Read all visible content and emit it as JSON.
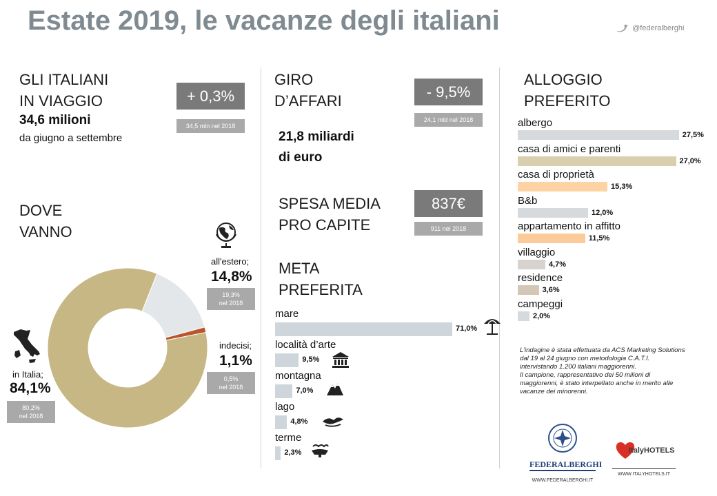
{
  "header": {
    "title": "Estate 2019, le vacanze degli italiani",
    "social_handle": "@federalberghi"
  },
  "travelers": {
    "heading_line1": "GLI ITALIANI",
    "heading_line2": "IN VIAGGIO",
    "amount": "34,6 milioni",
    "period": "da giugno a settembre",
    "change": "+ 0,3%",
    "previous": "34,5 mln nel 2018"
  },
  "turnover": {
    "heading_line1": "GIRO",
    "heading_line2": "D’AFFARI",
    "change": "- 9,5%",
    "previous": "24,1 mld nel 2018",
    "amount_line1": "21,8 miliardi",
    "amount_line2": "di euro"
  },
  "spending": {
    "heading_line1": "SPESA MEDIA",
    "heading_line2": "PRO CAPITE",
    "value": "837€",
    "previous": "911 nel 2018"
  },
  "destination": {
    "heading_line1": "DOVE",
    "heading_line2": "VANNO"
  },
  "meta_section": {
    "heading_line1": "META",
    "heading_line2": "PREFERITA"
  },
  "lodging_section": {
    "heading_line1": "ALLOGGIO",
    "heading_line2": "PREFERITO"
  },
  "chart_data": [
    {
      "type": "pie",
      "variant": "donut",
      "categories": [
        "in Italia",
        "all'estero",
        "indecisi"
      ],
      "values": [
        84.1,
        14.8,
        1.1
      ],
      "labels": [
        "in Italia;",
        "all'estero;",
        "indecisi;"
      ],
      "value_labels": [
        "84,1%",
        "14,8%",
        "1,1%"
      ],
      "previous_line1": [
        "80,2%",
        "19,3%",
        "0,5%"
      ],
      "previous_line2": [
        "nel 2018",
        "nel 2018",
        "nel 2018"
      ],
      "colors": [
        "#c6b784",
        "#e3e7e9",
        "#b9562b"
      ]
    },
    {
      "type": "bar",
      "orientation": "horizontal",
      "categories": [
        "mare",
        "località d’arte",
        "montagna",
        "lago",
        "terme"
      ],
      "values": [
        71.0,
        9.5,
        7.0,
        4.8,
        2.3
      ],
      "value_labels": [
        "71,0%",
        "9,5%",
        "7,0%",
        "4,8%",
        "2,3%"
      ],
      "icons": [
        "beach-umbrella-icon",
        "temple-icon",
        "mountain-icon",
        "lake-icon",
        "spa-icon"
      ],
      "color": "#cfd6db"
    },
    {
      "type": "bar",
      "orientation": "horizontal",
      "categories": [
        "albergo",
        "casa di amici e parenti",
        "casa di proprietà",
        "B&b",
        "appartamento in affitto",
        "villaggio",
        "residence",
        "campeggi"
      ],
      "values": [
        27.5,
        27.0,
        15.3,
        12.0,
        11.5,
        4.7,
        3.6,
        2.0
      ],
      "value_labels": [
        "27,5%",
        "27,0%",
        "15,3%",
        "12,0%",
        "11,5%",
        "4,7%",
        "3,6%",
        "2,0%"
      ],
      "colors": [
        "#d6dadc",
        "#d9ceae",
        "#fdd3a3",
        "#d6dadc",
        "#fbcb9a",
        "#d7d2ce",
        "#d4c7b6",
        "#d6dadc"
      ]
    }
  ],
  "survey_note": {
    "paragraph1": "L’indagine è stata effettuata da ACS Marketing Solutions dal 19 al 24 giugno con metodologia C.A.T.I. intervistando 1.200 italiani maggiorenni.",
    "paragraph2": "Il campione, rappresentativo dei 50 milioni di maggiorenni, è stato interpellato anche in merito alle vacanze dei minorenni."
  },
  "logos": {
    "federalberghi_name": "FEDERALBERGHI",
    "federalberghi_url": "WWW.FEDERALBERGHI.IT",
    "italyhotels_name": "ItalyHOTELS",
    "italyhotels_url": "WWW.ITALYHOTELS.IT"
  }
}
